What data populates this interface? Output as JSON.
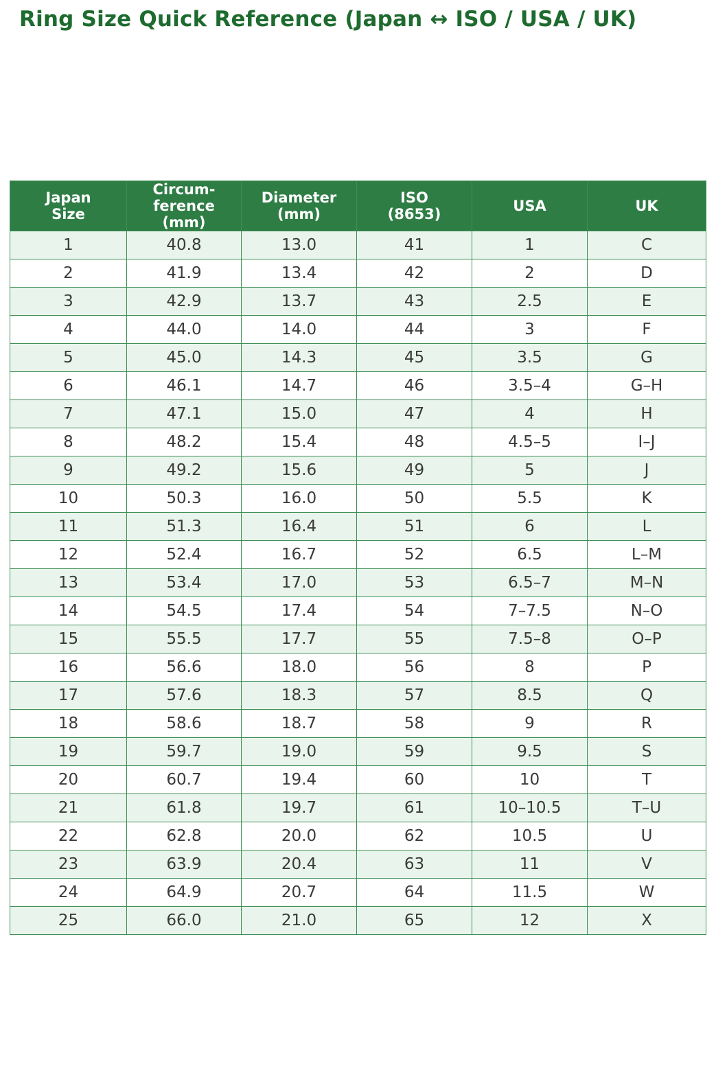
{
  "page": {
    "title": "Ring Size Quick Reference (Japan ↔ ISO / USA / UK)"
  },
  "colors": {
    "title_text": "#1e6b2f",
    "header_bg": "#2e7d45",
    "header_text": "#ffffff",
    "row_alt_bg": "#e9f5ec",
    "row_bg": "#ffffff",
    "grid_border": "#3e8e55",
    "cell_text": "#3a3a3a"
  },
  "chart_data": {
    "type": "table",
    "title": "Ring Size Quick Reference (Japan ↔ ISO / USA / UK)",
    "columns": [
      {
        "label": "Japan Size",
        "lines": [
          "Japan",
          "Size"
        ]
      },
      {
        "label": "Circumference (mm)",
        "lines": [
          "Circum-",
          "ference",
          "(mm)"
        ]
      },
      {
        "label": "Diameter (mm)",
        "lines": [
          "Diameter",
          "(mm)"
        ]
      },
      {
        "label": "ISO (8653)",
        "lines": [
          "ISO",
          "(8653)"
        ]
      },
      {
        "label": "USA",
        "lines": [
          "USA"
        ]
      },
      {
        "label": "UK",
        "lines": [
          "UK"
        ]
      }
    ],
    "rows": [
      [
        "1",
        "40.8",
        "13.0",
        "41",
        "1",
        "C"
      ],
      [
        "2",
        "41.9",
        "13.4",
        "42",
        "2",
        "D"
      ],
      [
        "3",
        "42.9",
        "13.7",
        "43",
        "2.5",
        "E"
      ],
      [
        "4",
        "44.0",
        "14.0",
        "44",
        "3",
        "F"
      ],
      [
        "5",
        "45.0",
        "14.3",
        "45",
        "3.5",
        "G"
      ],
      [
        "6",
        "46.1",
        "14.7",
        "46",
        "3.5–4",
        "G–H"
      ],
      [
        "7",
        "47.1",
        "15.0",
        "47",
        "4",
        "H"
      ],
      [
        "8",
        "48.2",
        "15.4",
        "48",
        "4.5–5",
        "I–J"
      ],
      [
        "9",
        "49.2",
        "15.6",
        "49",
        "5",
        "J"
      ],
      [
        "10",
        "50.3",
        "16.0",
        "50",
        "5.5",
        "K"
      ],
      [
        "11",
        "51.3",
        "16.4",
        "51",
        "6",
        "L"
      ],
      [
        "12",
        "52.4",
        "16.7",
        "52",
        "6.5",
        "L–M"
      ],
      [
        "13",
        "53.4",
        "17.0",
        "53",
        "6.5–7",
        "M–N"
      ],
      [
        "14",
        "54.5",
        "17.4",
        "54",
        "7–7.5",
        "N–O"
      ],
      [
        "15",
        "55.5",
        "17.7",
        "55",
        "7.5–8",
        "O–P"
      ],
      [
        "16",
        "56.6",
        "18.0",
        "56",
        "8",
        "P"
      ],
      [
        "17",
        "57.6",
        "18.3",
        "57",
        "8.5",
        "Q"
      ],
      [
        "18",
        "58.6",
        "18.7",
        "58",
        "9",
        "R"
      ],
      [
        "19",
        "59.7",
        "19.0",
        "59",
        "9.5",
        "S"
      ],
      [
        "20",
        "60.7",
        "19.4",
        "60",
        "10",
        "T"
      ],
      [
        "21",
        "61.8",
        "19.7",
        "61",
        "10–10.5",
        "T–U"
      ],
      [
        "22",
        "62.8",
        "20.0",
        "62",
        "10.5",
        "U"
      ],
      [
        "23",
        "63.9",
        "20.4",
        "63",
        "11",
        "V"
      ],
      [
        "24",
        "64.9",
        "20.7",
        "64",
        "11.5",
        "W"
      ],
      [
        "25",
        "66.0",
        "21.0",
        "65",
        "12",
        "X"
      ]
    ],
    "layout": {
      "grid": true,
      "alternating_rows": true,
      "header_position": "top"
    }
  }
}
